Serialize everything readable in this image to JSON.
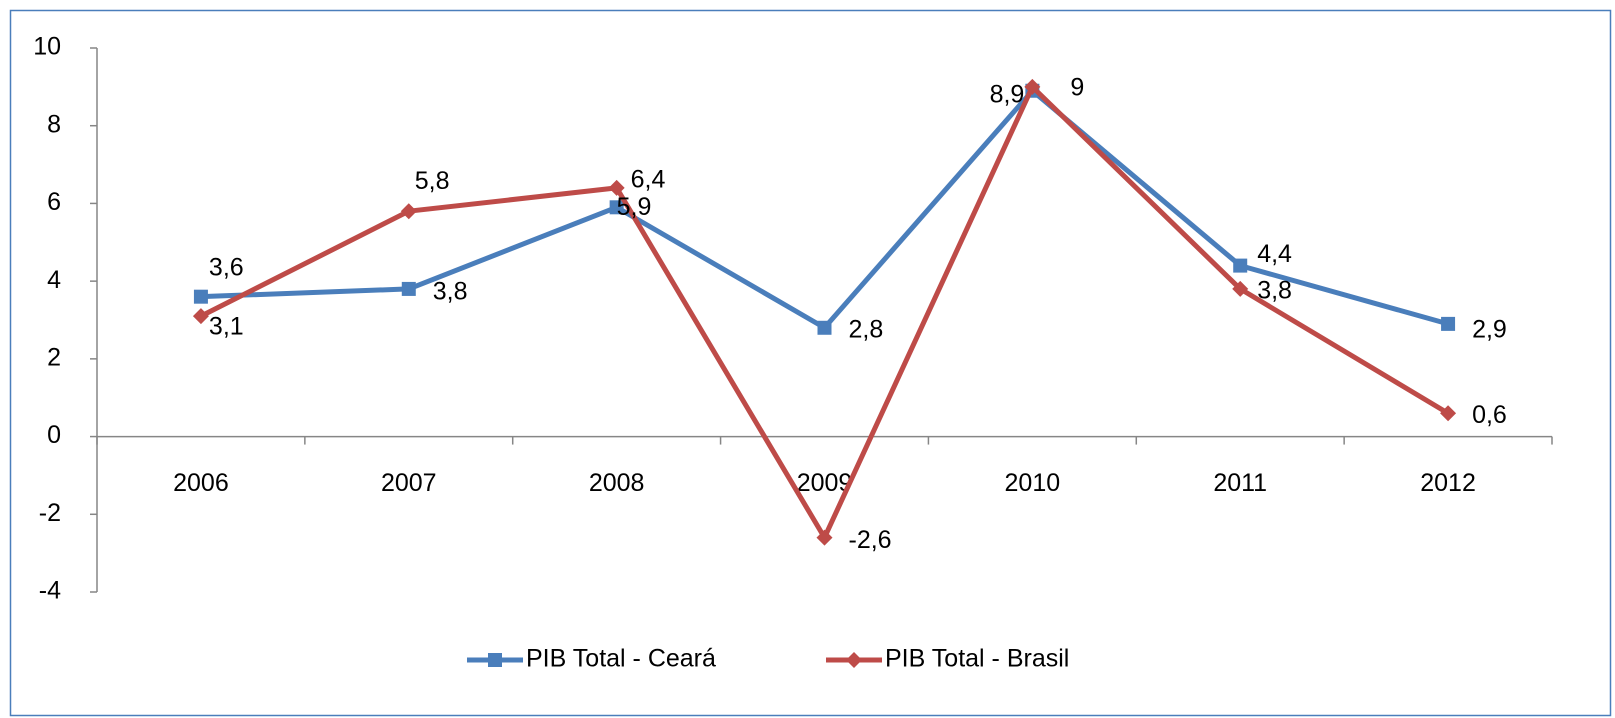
{
  "chart_data": {
    "type": "line",
    "categories": [
      "2006",
      "2007",
      "2008",
      "2009",
      "2010",
      "2011",
      "2012"
    ],
    "series": [
      {
        "name": "PIB Total - Ceará",
        "color": "#4a7ebb",
        "marker": "square",
        "values": [
          3.6,
          3.8,
          5.9,
          2.8,
          8.9,
          4.4,
          2.9
        ],
        "value_labels": [
          "3,6",
          "3,8",
          "5,9",
          "2,8",
          "8,9",
          "4,4",
          "2,9"
        ]
      },
      {
        "name": "PIB Total - Brasil",
        "color": "#be4b48",
        "marker": "diamond",
        "values": [
          3.1,
          5.8,
          6.4,
          -2.6,
          9,
          3.8,
          0.6
        ],
        "value_labels": [
          "3,1",
          "5,8",
          "6,4",
          "-2,6",
          "9",
          "3,8",
          "0,6"
        ]
      }
    ],
    "ylim": [
      -4,
      10
    ],
    "yticks": [
      -4,
      -2,
      0,
      2,
      4,
      6,
      8,
      10
    ],
    "grid": false,
    "legend": "bottom"
  }
}
